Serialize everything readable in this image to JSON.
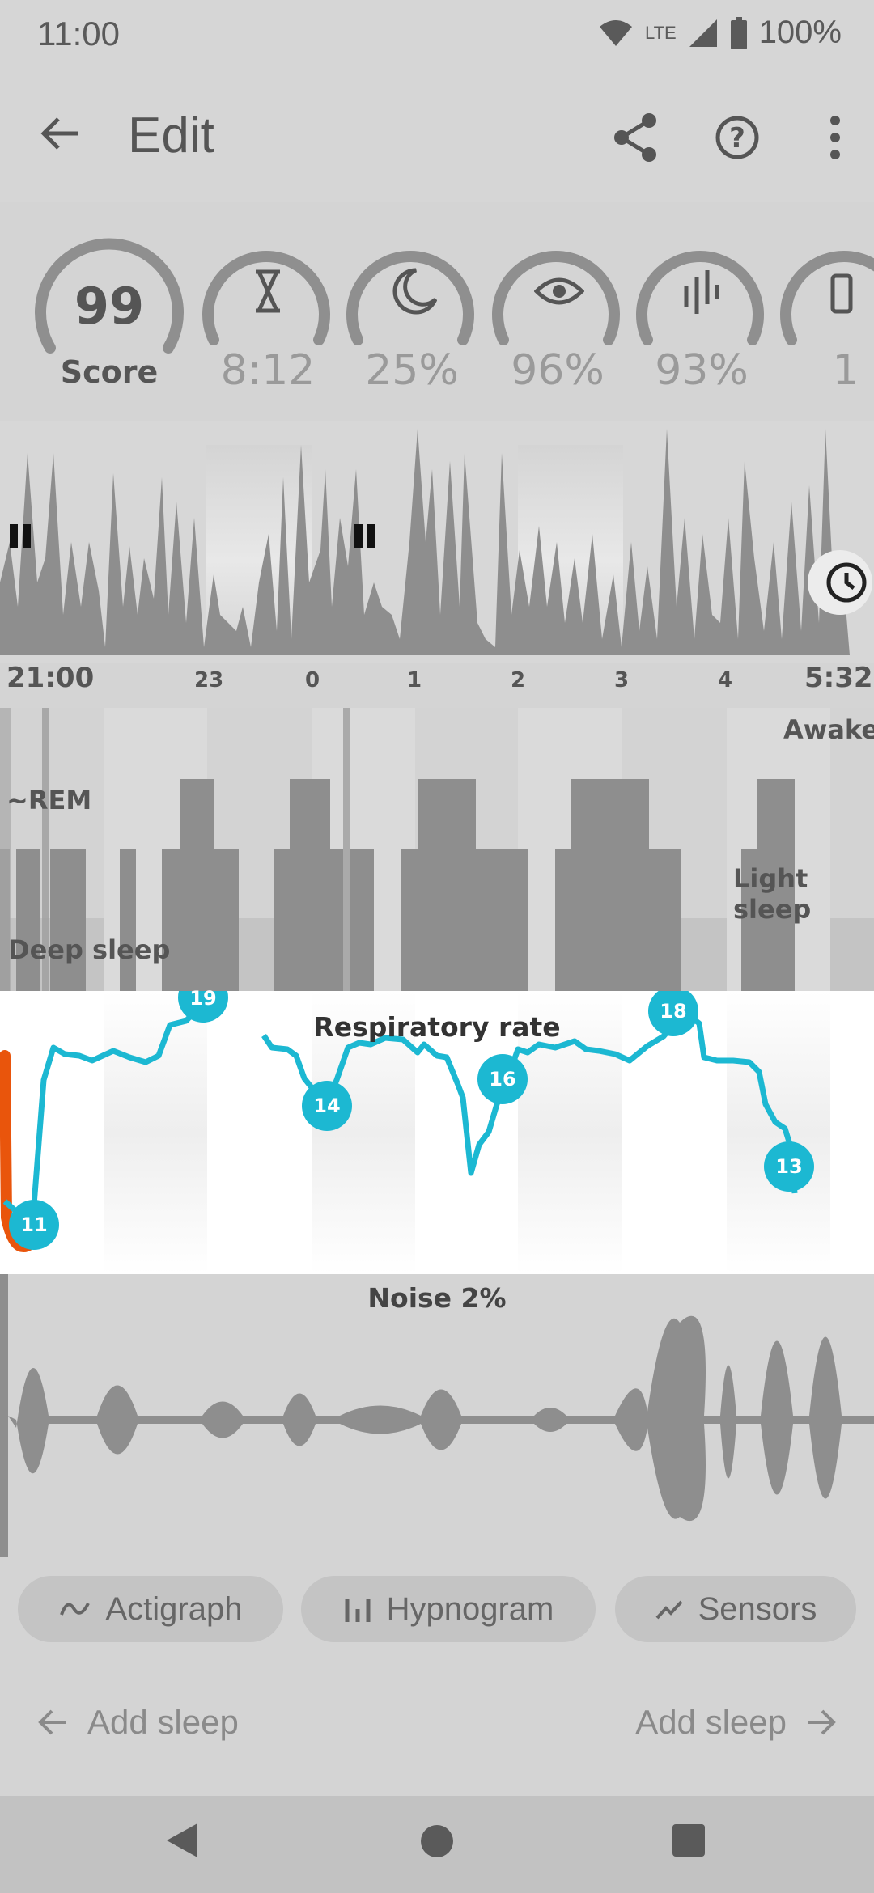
{
  "status_bar": {
    "time": "11:00",
    "network": "LTE",
    "battery": "100%",
    "icons": [
      "wifi-icon",
      "lte-icon",
      "signal-icon",
      "battery-icon"
    ]
  },
  "app_bar": {
    "title": "Edit",
    "icons": [
      "back-arrow-icon",
      "share-icon",
      "help-icon",
      "more-vert-icon"
    ]
  },
  "gauges": [
    {
      "name": "score",
      "value": "99",
      "label": "Score",
      "fraction": 0.99
    },
    {
      "name": "duration",
      "icon": "hourglass-icon",
      "value": "8:12",
      "fraction": 0.95
    },
    {
      "name": "deep-sleep",
      "icon": "moon-icon",
      "value": "25%",
      "fraction": 1.0
    },
    {
      "name": "efficiency",
      "icon": "eye-icon",
      "value": "96%",
      "fraction": 1.0
    },
    {
      "name": "regularity",
      "icon": "bars-icon",
      "value": "93%",
      "fraction": 1.0
    },
    {
      "name": "partial",
      "icon": "phone-icon",
      "value": "1",
      "fraction": 1.0
    }
  ],
  "actigraph": {
    "time_labels": [
      "21:00",
      "23",
      "0",
      "1",
      "2",
      "3",
      "4",
      "5:32"
    ],
    "pause_icon": "pause-icon",
    "clock_icon": "clock-icon"
  },
  "hypnogram": {
    "labels": {
      "awake": "Awake",
      "rem": "~REM",
      "light": "Light sleep",
      "deep": "Deep sleep"
    }
  },
  "respiratory": {
    "title": "Respiratory rate",
    "markers": [
      "19",
      "11",
      "14",
      "16",
      "18",
      "13"
    ],
    "line_color": "#1cb8d2",
    "alert_color": "#e9550c"
  },
  "noise": {
    "title": "Noise 2%"
  },
  "chips": [
    {
      "label": "Actigraph",
      "icon": "wave-icon"
    },
    {
      "label": "Hypnogram",
      "icon": "bars-icon"
    },
    {
      "label": "Sensors",
      "icon": "trend-icon"
    }
  ],
  "footer": {
    "add_sleep_left": "Add sleep",
    "add_sleep_right": "Add sleep"
  },
  "nav": [
    "back-triangle-icon",
    "home-circle-icon",
    "recents-square-icon"
  ]
}
